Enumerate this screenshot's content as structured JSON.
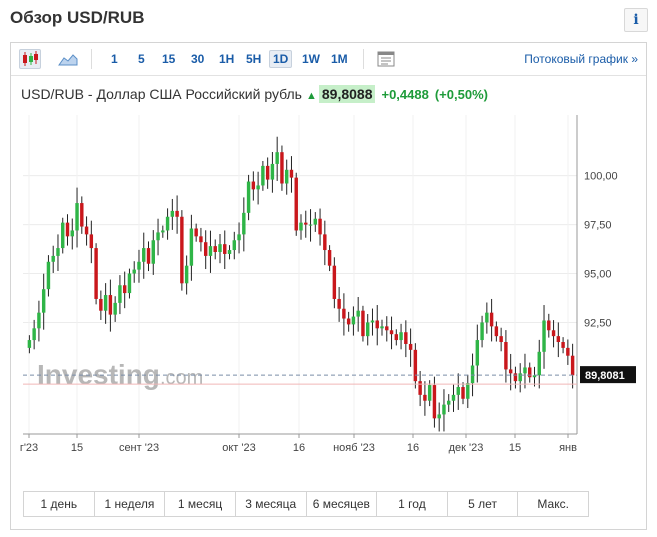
{
  "page_title": "Обзор USD/RUB",
  "info_icon": "i",
  "toolbar": {
    "icons": [
      "candlestick-icon",
      "area-chart-icon",
      "table-icon"
    ],
    "timeframes": [
      "1",
      "5",
      "15",
      "30",
      "1H",
      "5H",
      "1D",
      "1W",
      "1M"
    ],
    "active_timeframe": "1D",
    "stream_link": "Потоковый график »"
  },
  "quote": {
    "name": "USD/RUB - Доллар США Российский рубль",
    "price": "89,8088",
    "change": "+0,4488",
    "change_pct": "(+0,50%)"
  },
  "watermark": {
    "brand": "Investing",
    "suffix": ".com"
  },
  "colors": {
    "up": "#2fb547",
    "down": "#c9171c",
    "accent": "#1a5ca8"
  },
  "chart_data": {
    "type": "candlestick",
    "y_ticks": [
      "100,00",
      "97,50",
      "95,00",
      "92,50"
    ],
    "y_tick_values": [
      100,
      97.5,
      95,
      92.5
    ],
    "ylim": [
      86.8,
      103.1
    ],
    "x_ticks": [
      "г'23",
      "15",
      "сент '23",
      "окт '23",
      "16",
      "нояб '23",
      "16",
      "дек '23",
      "15",
      "янв"
    ],
    "current_price_label": "89,8081",
    "current_price": 89.8081,
    "closes": [
      91.6,
      92.2,
      93.0,
      94.2,
      95.6,
      95.9,
      96.3,
      97.6,
      96.9,
      97.2,
      98.6,
      97.4,
      97.0,
      96.3,
      93.7,
      93.1,
      93.9,
      92.9,
      93.5,
      94.4,
      94.0,
      95.0,
      95.2,
      95.6,
      96.3,
      95.5,
      96.7,
      97.1,
      97.2,
      97.9,
      98.2,
      97.9,
      94.5,
      95.4,
      97.3,
      96.9,
      96.6,
      95.9,
      96.4,
      96.1,
      96.5,
      96.0,
      96.2,
      96.7,
      97.0,
      98.1,
      99.7,
      99.3,
      99.5,
      100.5,
      99.8,
      100.6,
      101.2,
      99.6,
      100.3,
      99.9,
      97.2,
      97.6,
      97.5,
      97.5,
      97.8,
      97.0,
      96.2,
      95.4,
      93.7,
      93.2,
      92.7,
      92.4,
      92.8,
      93.1,
      91.8,
      92.5,
      92.6,
      92.2,
      92.3,
      92.1,
      91.9,
      91.6,
      92.0,
      91.4,
      91.1,
      89.5,
      88.8,
      88.5,
      89.3,
      87.6,
      87.8,
      88.3,
      88.5,
      88.8,
      89.2,
      88.6,
      89.4,
      90.3,
      91.6,
      92.5,
      93.0,
      92.3,
      91.8,
      91.5,
      90.1,
      89.9,
      89.5,
      89.9,
      90.2,
      89.7,
      89.8,
      91.0,
      92.6,
      92.1,
      91.8,
      91.5,
      91.2,
      90.8,
      89.8
    ]
  },
  "range_buttons": [
    "1 день",
    "1 неделя",
    "1 месяц",
    "3 месяца",
    "6 месяцев",
    "1 год",
    "5 лет",
    "Макс."
  ]
}
